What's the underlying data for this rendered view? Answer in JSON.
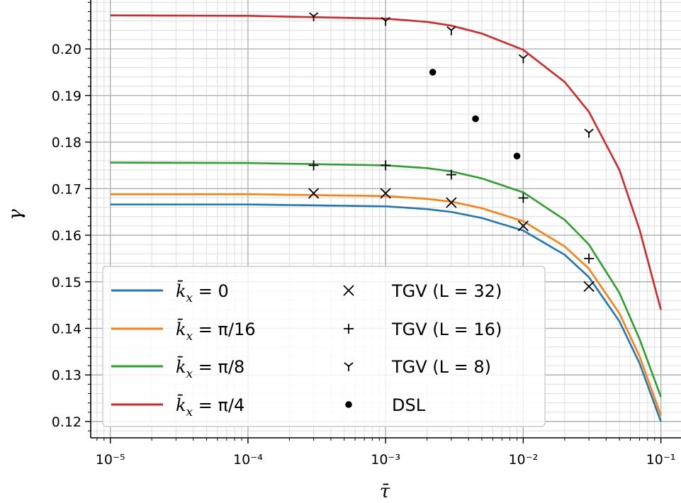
{
  "chart_data": {
    "type": "line",
    "xscale": "log",
    "xlabel": "τ̄",
    "ylabel": "γ",
    "xlim": [
      7.2e-06,
      0.14
    ],
    "ylim": [
      0.1165,
      0.2105
    ],
    "grid": true,
    "legend_position": "lower-left",
    "x_tick_labels": [
      "10⁻⁵",
      "10⁻⁴",
      "10⁻³",
      "10⁻²",
      "10⁻¹"
    ],
    "x_tick_values": [
      1e-05,
      0.0001,
      0.001,
      0.01,
      0.1
    ],
    "y_tick_labels": [
      "0.12",
      "0.13",
      "0.14",
      "0.15",
      "0.16",
      "0.17",
      "0.18",
      "0.19",
      "0.20"
    ],
    "y_tick_values": [
      0.12,
      0.13,
      0.14,
      0.15,
      0.16,
      0.17,
      0.18,
      0.19,
      0.2
    ],
    "series": [
      {
        "name": "k̄ₓ = 0",
        "color": "#1f77b4",
        "x": [
          1e-05,
          0.0001,
          0.001,
          0.002,
          0.003,
          0.005,
          0.01,
          0.02,
          0.03,
          0.05,
          0.07,
          0.1
        ],
        "y": [
          0.1666,
          0.1666,
          0.1662,
          0.1656,
          0.165,
          0.1637,
          0.161,
          0.1558,
          0.151,
          0.1415,
          0.1325,
          0.12
        ]
      },
      {
        "name": "k̄ₓ = π/16",
        "color": "#ff7f0e",
        "x": [
          1e-05,
          0.0001,
          0.001,
          0.002,
          0.003,
          0.005,
          0.01,
          0.02,
          0.03,
          0.05,
          0.07,
          0.1
        ],
        "y": [
          0.1688,
          0.1688,
          0.1684,
          0.1678,
          0.1672,
          0.1658,
          0.163,
          0.1576,
          0.1528,
          0.1432,
          0.134,
          0.1213
        ]
      },
      {
        "name": "k̄ₓ = π/8",
        "color": "#2ca02c",
        "x": [
          1e-05,
          0.0001,
          0.001,
          0.002,
          0.003,
          0.005,
          0.01,
          0.02,
          0.03,
          0.05,
          0.07,
          0.1
        ],
        "y": [
          0.1756,
          0.1755,
          0.175,
          0.1744,
          0.1737,
          0.1722,
          0.1692,
          0.1633,
          0.158,
          0.1476,
          0.1377,
          0.1253
        ]
      },
      {
        "name": "k̄ₓ = π/4",
        "color": "#d62728",
        "x": [
          1e-05,
          0.0001,
          0.001,
          0.002,
          0.003,
          0.005,
          0.01,
          0.02,
          0.03,
          0.05,
          0.07,
          0.1
        ],
        "y": [
          0.2072,
          0.2071,
          0.2065,
          0.2058,
          0.205,
          0.2033,
          0.1998,
          0.1929,
          0.1865,
          0.174,
          0.1612,
          0.144
        ]
      }
    ],
    "markers": [
      {
        "name": "TGV (L = 32)",
        "symbol": "x",
        "x": [
          0.0003,
          0.001,
          0.003,
          0.01,
          0.03
        ],
        "y": [
          0.169,
          0.169,
          0.167,
          0.162,
          0.149
        ]
      },
      {
        "name": "TGV (L = 16)",
        "symbol": "plus",
        "x": [
          0.0003,
          0.001,
          0.003,
          0.01,
          0.03
        ],
        "y": [
          0.175,
          0.175,
          0.173,
          0.168,
          0.155
        ]
      },
      {
        "name": "TGV (L = 8)",
        "symbol": "tri_down",
        "x": [
          0.0003,
          0.001,
          0.003,
          0.01,
          0.03
        ],
        "y": [
          0.207,
          0.206,
          0.204,
          0.198,
          0.182
        ]
      },
      {
        "name": "DSL",
        "symbol": "dot",
        "x": [
          0.0022,
          0.0045,
          0.009
        ],
        "y": [
          0.195,
          0.185,
          0.177
        ]
      }
    ],
    "legend_math": [
      {
        "var": "k̄",
        "sub": "x",
        "rhs": " = 0"
      },
      {
        "var": "k̄",
        "sub": "x",
        "rhs": " = π/16"
      },
      {
        "var": "k̄",
        "sub": "x",
        "rhs": " = π/8"
      },
      {
        "var": "k̄",
        "sub": "x",
        "rhs": " = π/4"
      }
    ]
  }
}
